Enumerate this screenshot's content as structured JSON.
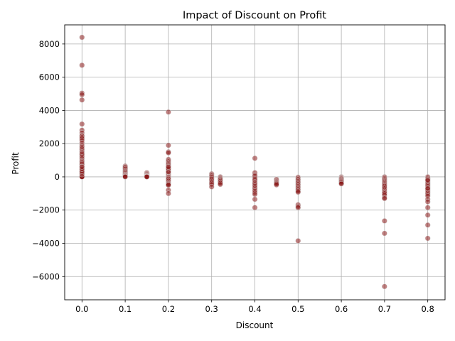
{
  "chart_data": {
    "type": "scatter",
    "title": "Impact of Discount on Profit",
    "xlabel": "Discount",
    "ylabel": "Profit",
    "xlim": [
      -0.04,
      0.84
    ],
    "ylim": [
      -7400,
      9150
    ],
    "xticks": [
      0.0,
      0.1,
      0.2,
      0.3,
      0.4,
      0.5,
      0.6,
      0.7,
      0.8
    ],
    "xtick_labels": [
      "0.0",
      "0.1",
      "0.2",
      "0.3",
      "0.4",
      "0.5",
      "0.6",
      "0.7",
      "0.8"
    ],
    "yticks": [
      -6000,
      -4000,
      -2000,
      0,
      2000,
      4000,
      6000,
      8000
    ],
    "ytick_labels": [
      "−6000",
      "−4000",
      "−2000",
      "0",
      "2000",
      "4000",
      "6000",
      "8000"
    ],
    "grid": true,
    "marker_color": "#8b1a1a",
    "marker_edge_color": "#d9d9d9",
    "series": [
      {
        "x": [
          0,
          0,
          0,
          0,
          0,
          0,
          0,
          0,
          0,
          0,
          0,
          0,
          0,
          0,
          0,
          0,
          0,
          0,
          0,
          0,
          0,
          0,
          0,
          0,
          0,
          0,
          0,
          0,
          0,
          0,
          0,
          0,
          0,
          0,
          0,
          0,
          0,
          0,
          0,
          0,
          0,
          0,
          0,
          0,
          0,
          0,
          0,
          0,
          0,
          0,
          0,
          0,
          0.1,
          0.1,
          0.1,
          0.1,
          0.1,
          0.1,
          0.1,
          0.1,
          0.1,
          0.1,
          0.1,
          0.1,
          0.1,
          0.1,
          0.1,
          0.15,
          0.15,
          0.15,
          0.15,
          0.15,
          0.15,
          0.15,
          0.15,
          0.15,
          0.15,
          0.2,
          0.2,
          0.2,
          0.2,
          0.2,
          0.2,
          0.2,
          0.2,
          0.2,
          0.2,
          0.2,
          0.2,
          0.2,
          0.2,
          0.2,
          0.2,
          0.2,
          0.2,
          0.2,
          0.2,
          0.2,
          0.2,
          0.2,
          0.2,
          0.2,
          0.2,
          0.2,
          0.2,
          0.2,
          0.2,
          0.2,
          0.2,
          0.2,
          0.2,
          0.2,
          0.2,
          0.2,
          0.2,
          0.2,
          0.3,
          0.3,
          0.3,
          0.3,
          0.3,
          0.3,
          0.3,
          0.3,
          0.3,
          0.3,
          0.3,
          0.32,
          0.32,
          0.32,
          0.32,
          0.32,
          0.32,
          0.32,
          0.32,
          0.32,
          0.32,
          0.4,
          0.4,
          0.4,
          0.4,
          0.4,
          0.4,
          0.4,
          0.4,
          0.4,
          0.4,
          0.4,
          0.4,
          0.4,
          0.4,
          0.4,
          0.4,
          0.4,
          0.4,
          0.45,
          0.45,
          0.45,
          0.45,
          0.45,
          0.45,
          0.45,
          0.45,
          0.5,
          0.5,
          0.5,
          0.5,
          0.5,
          0.5,
          0.5,
          0.5,
          0.5,
          0.5,
          0.5,
          0.5,
          0.5,
          0.5,
          0.5,
          0.5,
          0.5,
          0.5,
          0.5,
          0.5,
          0.6,
          0.6,
          0.6,
          0.6,
          0.6,
          0.6,
          0.6,
          0.6,
          0.6,
          0.6,
          0.6,
          0.6,
          0.7,
          0.7,
          0.7,
          0.7,
          0.7,
          0.7,
          0.7,
          0.7,
          0.7,
          0.7,
          0.7,
          0.7,
          0.7,
          0.7,
          0.7,
          0.7,
          0.7,
          0.7,
          0.7,
          0.7,
          0.7,
          0.7,
          0.7,
          0.7,
          0.8,
          0.8,
          0.8,
          0.8,
          0.8,
          0.8,
          0.8,
          0.8,
          0.8,
          0.8,
          0.8,
          0.8,
          0.8,
          0.8,
          0.8,
          0.8,
          0.8,
          0.8,
          0.8,
          0.8,
          0.8,
          0.8,
          0.8
        ],
        "y": [
          8400,
          6720,
          5040,
          4950,
          4630,
          3180,
          2810,
          2650,
          2500,
          2450,
          2380,
          2300,
          2200,
          2050,
          1900,
          1800,
          1700,
          1600,
          1500,
          1450,
          1380,
          1300,
          1200,
          1100,
          1000,
          950,
          900,
          850,
          780,
          700,
          620,
          560,
          500,
          440,
          380,
          320,
          270,
          220,
          180,
          140,
          100,
          70,
          40,
          20,
          10,
          5,
          0,
          150,
          250,
          330,
          470,
          600,
          650,
          600,
          550,
          480,
          400,
          350,
          300,
          250,
          200,
          150,
          120,
          80,
          50,
          20,
          0,
          250,
          200,
          160,
          120,
          90,
          60,
          40,
          20,
          10,
          0,
          3900,
          1900,
          1500,
          1450,
          1050,
          980,
          920,
          850,
          800,
          750,
          700,
          640,
          580,
          520,
          460,
          400,
          340,
          280,
          220,
          160,
          110,
          60,
          20,
          0,
          -30,
          -80,
          -120,
          -180,
          -250,
          -320,
          -380,
          -420,
          -460,
          -500,
          -800,
          -1000,
          300,
          500,
          600,
          180,
          120,
          60,
          0,
          -60,
          -120,
          -200,
          -280,
          -360,
          -450,
          -600,
          0,
          -40,
          -80,
          -120,
          -160,
          -200,
          -260,
          -320,
          -380,
          -450,
          1120,
          250,
          120,
          50,
          -50,
          -120,
          -200,
          -300,
          -380,
          -450,
          -550,
          -650,
          -750,
          -850,
          -950,
          -1050,
          -1350,
          -1850,
          -150,
          -200,
          -260,
          -300,
          -340,
          -380,
          -420,
          -480,
          -20,
          -80,
          -140,
          -200,
          -260,
          -320,
          -380,
          -440,
          -500,
          -560,
          -620,
          -680,
          -740,
          -800,
          -860,
          -920,
          -1680,
          -1780,
          -1850,
          -3850,
          0,
          -30,
          -60,
          -90,
          -120,
          -160,
          -200,
          -240,
          -280,
          -320,
          -380,
          -420,
          0,
          -50,
          -100,
          -150,
          -200,
          -250,
          -300,
          -350,
          -400,
          -450,
          -500,
          -550,
          -620,
          -700,
          -800,
          -880,
          -950,
          -1000,
          -1100,
          -1250,
          -1300,
          -2650,
          -3400,
          -6600,
          0,
          -60,
          -120,
          -180,
          -250,
          -320,
          -400,
          -480,
          -560,
          -650,
          -750,
          -850,
          -950,
          -1050,
          -1150,
          -1350,
          -1500,
          -1850,
          -2300,
          -2900,
          -3700,
          -200,
          -700
        ]
      }
    ]
  }
}
